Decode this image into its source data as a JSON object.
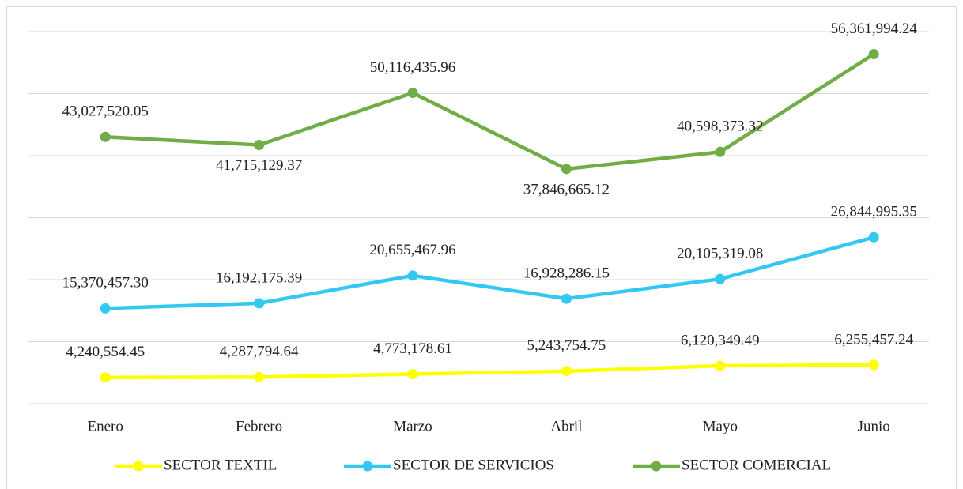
{
  "chart_data": {
    "type": "line",
    "categories": [
      "Enero",
      "Febrero",
      "Marzo",
      "Abril",
      "Mayo",
      "Junio"
    ],
    "series": [
      {
        "name": "SECTOR TEXTIL",
        "color": "#ffff00",
        "values": [
          4240554.45,
          4287794.64,
          4773178.61,
          5243754.75,
          6120349.49,
          6255457.24
        ],
        "value_labels": [
          "4,240,554.45",
          "4,287,794.64",
          "4,773,178.61",
          "5,243,754.75",
          "6,120,349.49",
          "6,255,457.24"
        ]
      },
      {
        "name": "SECTOR DE SERVICIOS",
        "color": "#33c8f2",
        "values": [
          15370457.3,
          16192175.39,
          20655467.96,
          16928286.15,
          20105319.08,
          26844995.35
        ],
        "value_labels": [
          "15,370,457.30",
          "16,192,175.39",
          "20,655,467.96",
          "16,928,286.15",
          "20,105,319.08",
          "26,844,995.35"
        ]
      },
      {
        "name": "SECTOR COMERCIAL",
        "color": "#70ad47",
        "values": [
          43027520.05,
          41715129.37,
          50116435.96,
          37846665.12,
          40598373.32,
          56361994.24
        ],
        "value_labels": [
          "43,027,520.05",
          "41,715,129.37",
          "50,116,435.96",
          "37,846,665.12",
          "40,598,373.32",
          "56,361,994.24"
        ]
      }
    ],
    "ylim": [
      0,
      60000000
    ],
    "yticks": [
      0,
      10000000,
      20000000,
      30000000,
      40000000,
      50000000,
      60000000
    ],
    "grid": true,
    "legend": "bottom"
  }
}
